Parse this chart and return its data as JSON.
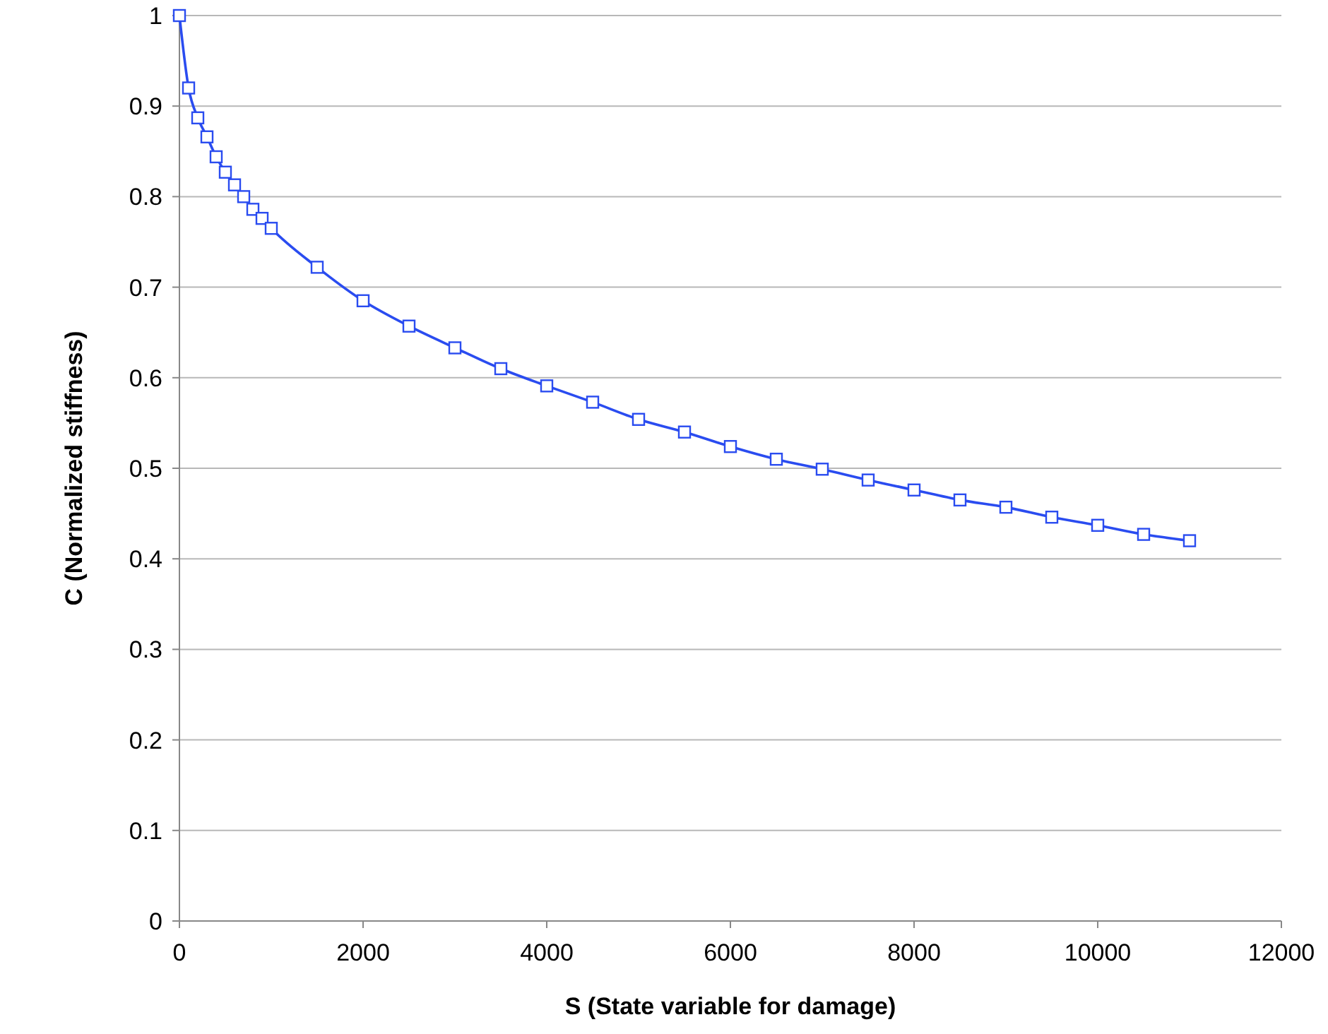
{
  "chart_data": {
    "type": "line",
    "xlabel": "S (State variable for damage)",
    "ylabel": "C (Normalized stiffness)",
    "xlim": [
      0,
      12000
    ],
    "xticks": [
      0,
      2000,
      4000,
      6000,
      8000,
      10000,
      12000
    ],
    "ylim": [
      0,
      1
    ],
    "yticks": [
      0,
      0.1,
      0.2,
      0.3,
      0.4,
      0.5,
      0.6,
      0.7,
      0.8,
      0.9,
      1
    ],
    "grid": "y",
    "marker": "square",
    "line_style": "solid",
    "series": [
      {
        "color": "#2a4cf0",
        "x": [
          0,
          100,
          200,
          300,
          400,
          500,
          600,
          700,
          800,
          900,
          1000,
          1500,
          2000,
          2500,
          3000,
          3500,
          4000,
          4500,
          5000,
          5500,
          6000,
          6500,
          7000,
          7500,
          8000,
          8500,
          9000,
          9500,
          10000,
          10500,
          11000
        ],
        "values": [
          1.0,
          0.92,
          0.887,
          0.866,
          0.844,
          0.827,
          0.813,
          0.8,
          0.786,
          0.776,
          0.765,
          0.722,
          0.685,
          0.657,
          0.633,
          0.61,
          0.591,
          0.573,
          0.554,
          0.54,
          0.524,
          0.51,
          0.499,
          0.487,
          0.476,
          0.465,
          0.457,
          0.446,
          0.437,
          0.427,
          0.42
        ]
      }
    ]
  }
}
